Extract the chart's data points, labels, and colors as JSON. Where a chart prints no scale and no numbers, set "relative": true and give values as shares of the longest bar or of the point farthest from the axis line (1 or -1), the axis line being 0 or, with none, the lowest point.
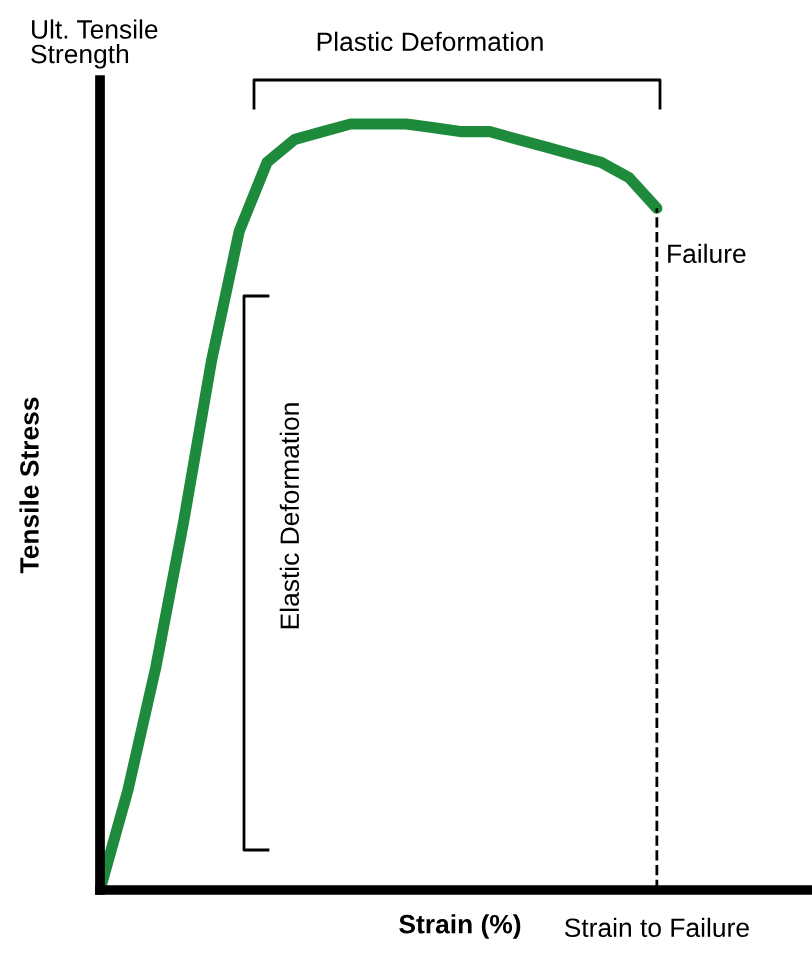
{
  "chart_data": {
    "type": "line",
    "relative": true,
    "xlabel": "Strain (%)",
    "ylabel": "Tensile Stress",
    "categories": [
      null,
      null,
      null,
      null,
      null,
      null,
      null,
      null,
      null,
      null,
      null,
      null,
      null,
      null,
      null,
      null,
      null,
      null,
      null,
      null,
      null,
      null,
      null,
      null,
      null,
      null
    ],
    "series": [
      {
        "color": "#1e8a3c",
        "values": [
          0,
          0.13,
          0.29,
          0.48,
          0.69,
          0.86,
          0.95,
          0.98,
          0.99,
          1,
          1,
          1,
          0.995,
          0.99,
          0.99,
          0.98,
          0.97,
          0.96,
          0.95,
          0.93,
          0.89,
          null,
          null,
          null,
          null,
          null
        ]
      }
    ],
    "annotations": [
      "Ult. Tensile\nStrength",
      "Plastic Deformation",
      "Elastic Deformation",
      "Failure",
      "Strain to Failure"
    ],
    "legend": false,
    "marker": "none",
    "line_style": "solid"
  }
}
